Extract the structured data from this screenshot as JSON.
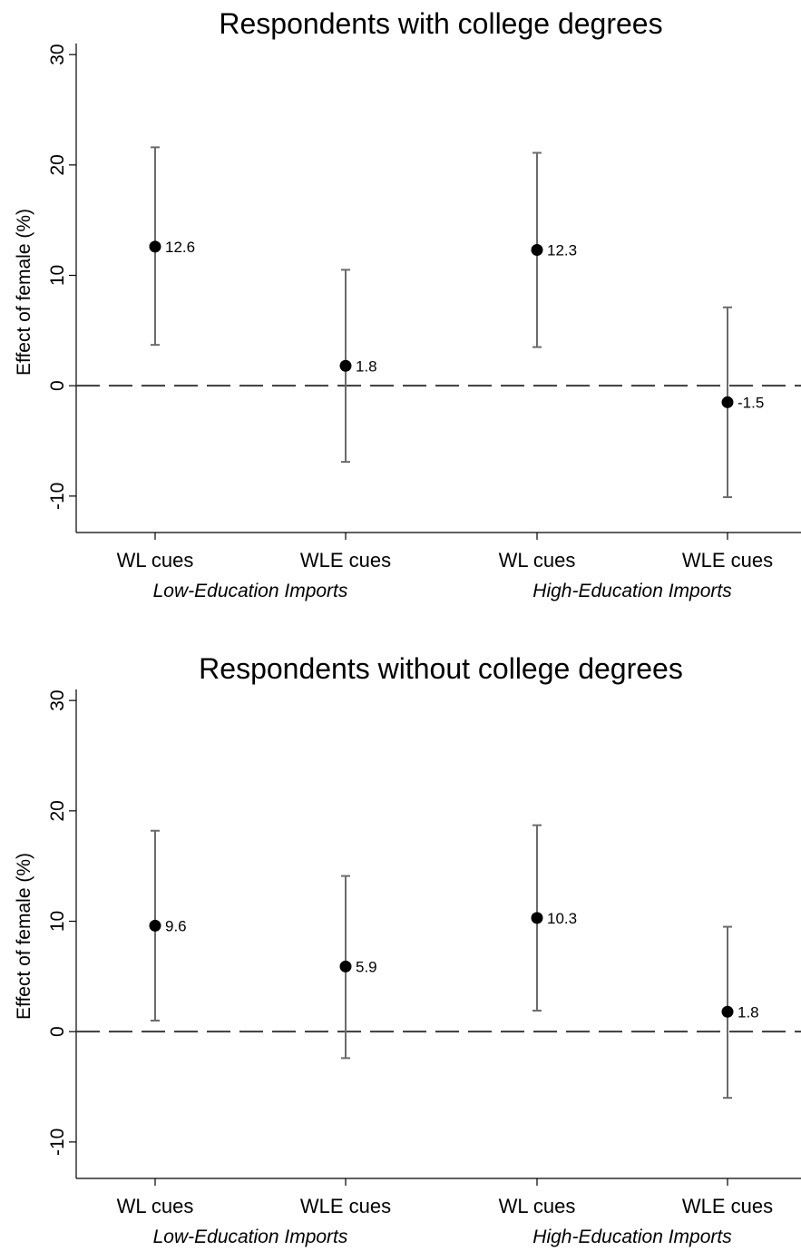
{
  "chart_data": [
    {
      "type": "scatter",
      "title": "Respondents with college degrees",
      "ylabel": "Effect of female (%)",
      "ylim": [
        -13.3,
        31
      ],
      "yticks": [
        -10,
        0,
        10,
        20,
        30
      ],
      "categories": [
        "WL cues",
        "WLE cues",
        "WL cues",
        "WLE cues"
      ],
      "groups": [
        "Low-Education Imports",
        "High-Education Imports"
      ],
      "zero_line": "dashed",
      "grid": false,
      "points": [
        {
          "x": "WL cues",
          "group": "Low-Education Imports",
          "estimate": 12.6,
          "label": "12.6",
          "ci_low": 3.7,
          "ci_high": 21.6
        },
        {
          "x": "WLE cues",
          "group": "Low-Education Imports",
          "estimate": 1.8,
          "label": "1.8",
          "ci_low": -6.9,
          "ci_high": 10.5
        },
        {
          "x": "WL cues",
          "group": "High-Education Imports",
          "estimate": 12.3,
          "label": "12.3",
          "ci_low": 3.5,
          "ci_high": 21.1
        },
        {
          "x": "WLE cues",
          "group": "High-Education Imports",
          "estimate": -1.5,
          "label": "-1.5",
          "ci_low": -10.1,
          "ci_high": 7.1
        }
      ]
    },
    {
      "type": "scatter",
      "title": "Respondents without college degrees",
      "ylabel": "Effect of female (%)",
      "ylim": [
        -13.3,
        31
      ],
      "yticks": [
        -10,
        0,
        10,
        20,
        30
      ],
      "categories": [
        "WL cues",
        "WLE cues",
        "WL cues",
        "WLE cues"
      ],
      "groups": [
        "Low-Education Imports",
        "High-Education Imports"
      ],
      "zero_line": "dashed",
      "grid": false,
      "points": [
        {
          "x": "WL cues",
          "group": "Low-Education Imports",
          "estimate": 9.6,
          "label": "9.6",
          "ci_low": 1.0,
          "ci_high": 18.2
        },
        {
          "x": "WLE cues",
          "group": "Low-Education Imports",
          "estimate": 5.9,
          "label": "5.9",
          "ci_low": -2.4,
          "ci_high": 14.1
        },
        {
          "x": "WL cues",
          "group": "High-Education Imports",
          "estimate": 10.3,
          "label": "10.3",
          "ci_low": 1.9,
          "ci_high": 18.7
        },
        {
          "x": "WLE cues",
          "group": "High-Education Imports",
          "estimate": 1.8,
          "label": "1.8",
          "ci_low": -6.0,
          "ci_high": 9.5
        }
      ]
    }
  ]
}
